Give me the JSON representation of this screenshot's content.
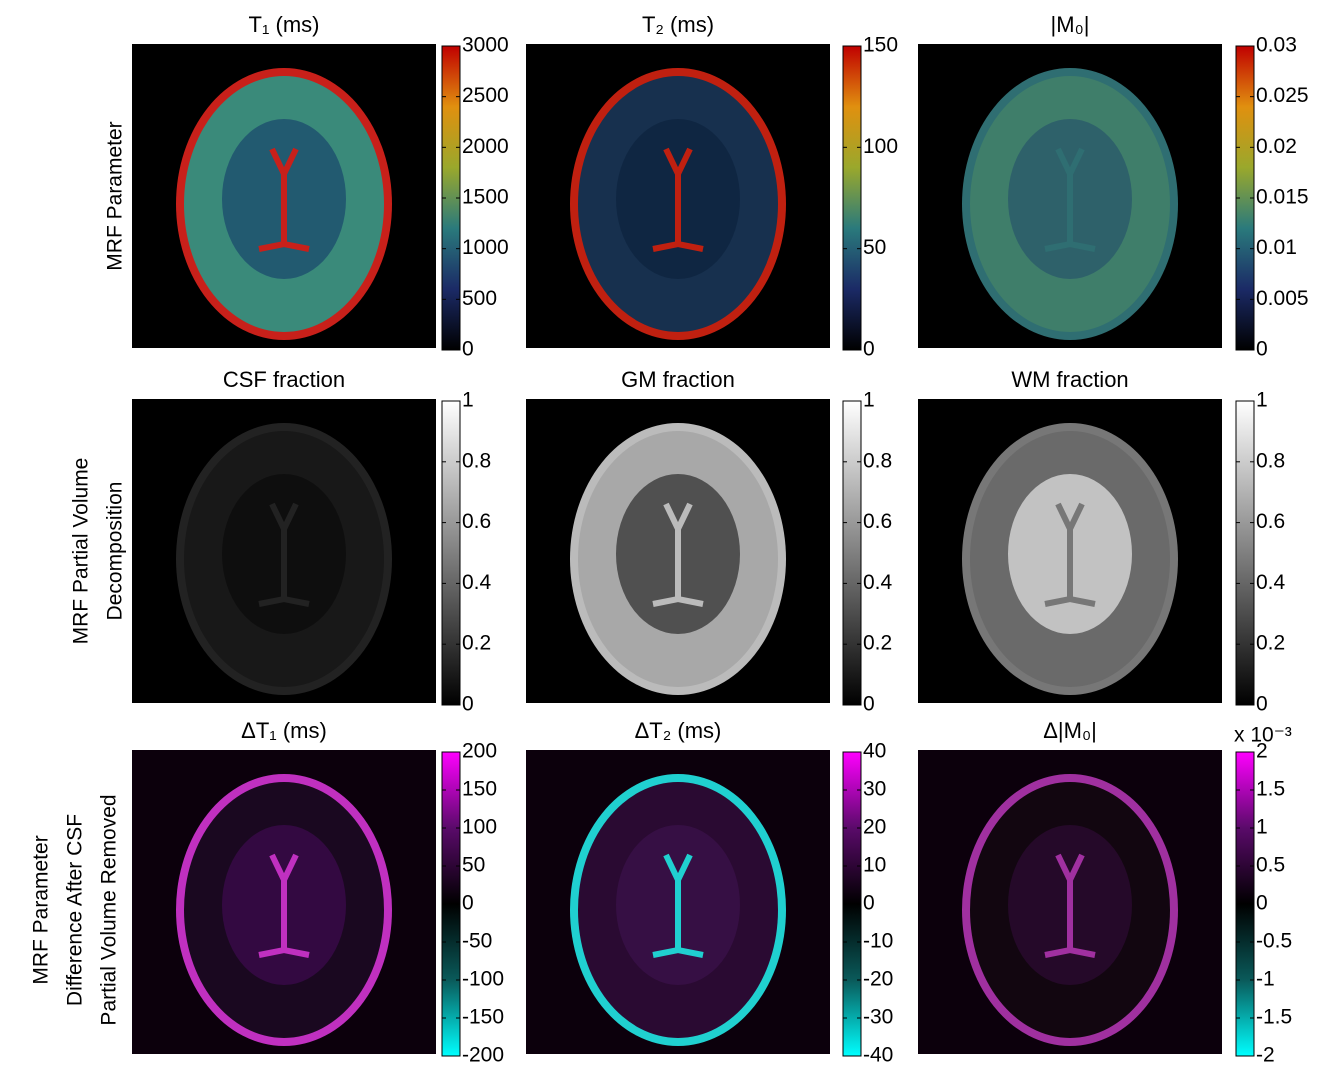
{
  "row_labels": [
    [
      "MRF Parameter"
    ],
    [
      "MRF Partial Volume",
      "Decomposition"
    ],
    [
      "MRF Parameter",
      "Difference After CSF",
      "Partial Volume Removed"
    ]
  ],
  "panels": [
    {
      "title": "T₁ (ms)",
      "colorbar": {
        "lim": [
          0,
          3000
        ],
        "ticks": [
          0,
          500,
          1000,
          1500,
          2000,
          2500,
          3000
        ],
        "colors": [
          "#000000",
          "#1b2a66",
          "#2a7a7c",
          "#9aa82c",
          "#e0900f",
          "#c00000"
        ]
      }
    },
    {
      "title": "T₂ (ms)",
      "colorbar": {
        "lim": [
          0,
          150
        ],
        "ticks": [
          0,
          50,
          100,
          150
        ],
        "colors": [
          "#000000",
          "#1b2a66",
          "#2a7a7c",
          "#9aa82c",
          "#e0900f",
          "#c00000"
        ]
      }
    },
    {
      "title": "|M₀|",
      "colorbar": {
        "lim": [
          0,
          0.03
        ],
        "ticks": [
          0,
          0.005,
          0.01,
          0.015,
          0.02,
          0.025,
          0.03
        ],
        "colors": [
          "#000000",
          "#1b2a66",
          "#2a7a7c",
          "#9aa82c",
          "#e0900f",
          "#c00000"
        ]
      }
    },
    {
      "title": "CSF fraction",
      "colorbar": {
        "lim": [
          0,
          1
        ],
        "ticks": [
          0,
          0.2,
          0.4,
          0.6,
          0.8,
          1
        ],
        "colors": [
          "#000000",
          "#ffffff"
        ]
      }
    },
    {
      "title": "GM fraction",
      "colorbar": {
        "lim": [
          0,
          1
        ],
        "ticks": [
          0,
          0.2,
          0.4,
          0.6,
          0.8,
          1
        ],
        "colors": [
          "#000000",
          "#ffffff"
        ]
      }
    },
    {
      "title": "WM fraction",
      "colorbar": {
        "lim": [
          0,
          1
        ],
        "ticks": [
          0,
          0.2,
          0.4,
          0.6,
          0.8,
          1
        ],
        "colors": [
          "#000000",
          "#ffffff"
        ]
      }
    },
    {
      "title": "ΔT₁ (ms)",
      "colorbar": {
        "lim": [
          -200,
          200
        ],
        "ticks": [
          -200,
          -150,
          -100,
          -50,
          0,
          50,
          100,
          150,
          200
        ],
        "colors": [
          "#00ffff",
          "#0a5a5a",
          "#000000",
          "#5a0a6a",
          "#ff00ff"
        ]
      }
    },
    {
      "title": "ΔT₂ (ms)",
      "colorbar": {
        "lim": [
          -40,
          40
        ],
        "ticks": [
          -40,
          -30,
          -20,
          -10,
          0,
          10,
          20,
          30,
          40
        ],
        "colors": [
          "#00ffff",
          "#0a5a5a",
          "#000000",
          "#5a0a6a",
          "#ff00ff"
        ]
      }
    },
    {
      "title": "Δ|M₀|",
      "colorbar": {
        "lim": [
          -2,
          2
        ],
        "ticks": [
          -2,
          -1.5,
          -1,
          -0.5,
          0,
          0.5,
          1,
          1.5,
          2
        ],
        "colors": [
          "#00ffff",
          "#0a5a5a",
          "#000000",
          "#5a0a6a",
          "#ff00ff"
        ],
        "multiplier": "x 10⁻³"
      }
    }
  ]
}
